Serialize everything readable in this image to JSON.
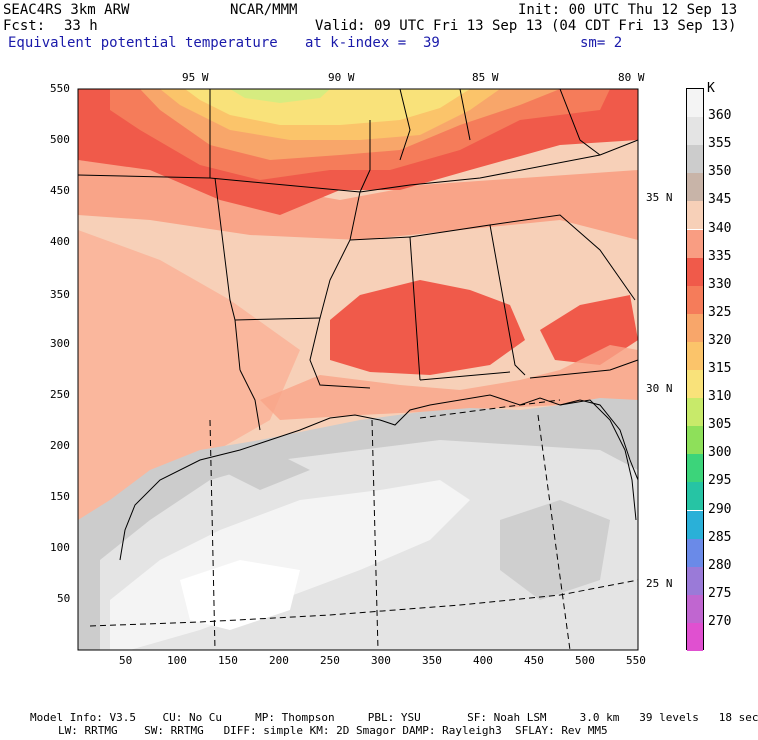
{
  "header": {
    "model": "SEAC4RS 3km ARW",
    "org": "NCAR/MMM",
    "init": "Init: 00 UTC Thu 12 Sep 13",
    "fcst_label": "Fcst:",
    "fcst_value": "33 h",
    "valid": "Valid: 09 UTC Fri 13 Sep 13 (04 CDT Fri 13 Sep 13)",
    "field": "Equivalent potential temperature",
    "level": "at k-index =  39",
    "smooth": "sm= 2"
  },
  "axes": {
    "lon_labels": [
      "95 W",
      "90 W",
      "85 W",
      "80 W"
    ],
    "lat_labels": [
      "35 N",
      "30 N",
      "25 N"
    ],
    "y_ticks": [
      "550",
      "500",
      "450",
      "400",
      "350",
      "300",
      "250",
      "200",
      "150",
      "100",
      "50"
    ],
    "x_ticks": [
      "50",
      "100",
      "150",
      "200",
      "250",
      "300",
      "350",
      "400",
      "450",
      "500",
      "550"
    ]
  },
  "legend": {
    "unit": "K",
    "levels": [
      {
        "label": "360",
        "color": "#f4f4f4"
      },
      {
        "label": "355",
        "color": "#e4e4e4"
      },
      {
        "label": "350",
        "color": "#cccccc"
      },
      {
        "label": "345",
        "color": "#c8b4a8"
      },
      {
        "label": "340",
        "color": "#f7d0b8"
      },
      {
        "label": "335",
        "color": "#f99d82"
      },
      {
        "label": "330",
        "color": "#f05a4a"
      },
      {
        "label": "325",
        "color": "#f57c5a"
      },
      {
        "label": "320",
        "color": "#f8a66a"
      },
      {
        "label": "315",
        "color": "#fbc46a"
      },
      {
        "label": "310",
        "color": "#f9e27a"
      },
      {
        "label": "305",
        "color": "#c8ea6a"
      },
      {
        "label": "300",
        "color": "#8ee05a"
      },
      {
        "label": "295",
        "color": "#3cd47a"
      },
      {
        "label": "290",
        "color": "#26c4a4"
      },
      {
        "label": "285",
        "color": "#2ab0d8"
      },
      {
        "label": "280",
        "color": "#6a8ae8"
      },
      {
        "label": "275",
        "color": "#9a7ad8"
      },
      {
        "label": "270",
        "color": "#c066d0"
      },
      {
        "label": "",
        "color": "#e050d0"
      }
    ]
  },
  "footer": {
    "line1": "Model Info: V3.5    CU: No Cu     MP: Thompson     PBL: YSU       SF: Noah LSM     3.0 km   39 levels   18 sec",
    "line2": "LW: RRTMG    SW: RRTMG   DIFF: simple KM: 2D Smagor DAMP: Rayleigh3  SFLAY: Rev MM5"
  }
}
